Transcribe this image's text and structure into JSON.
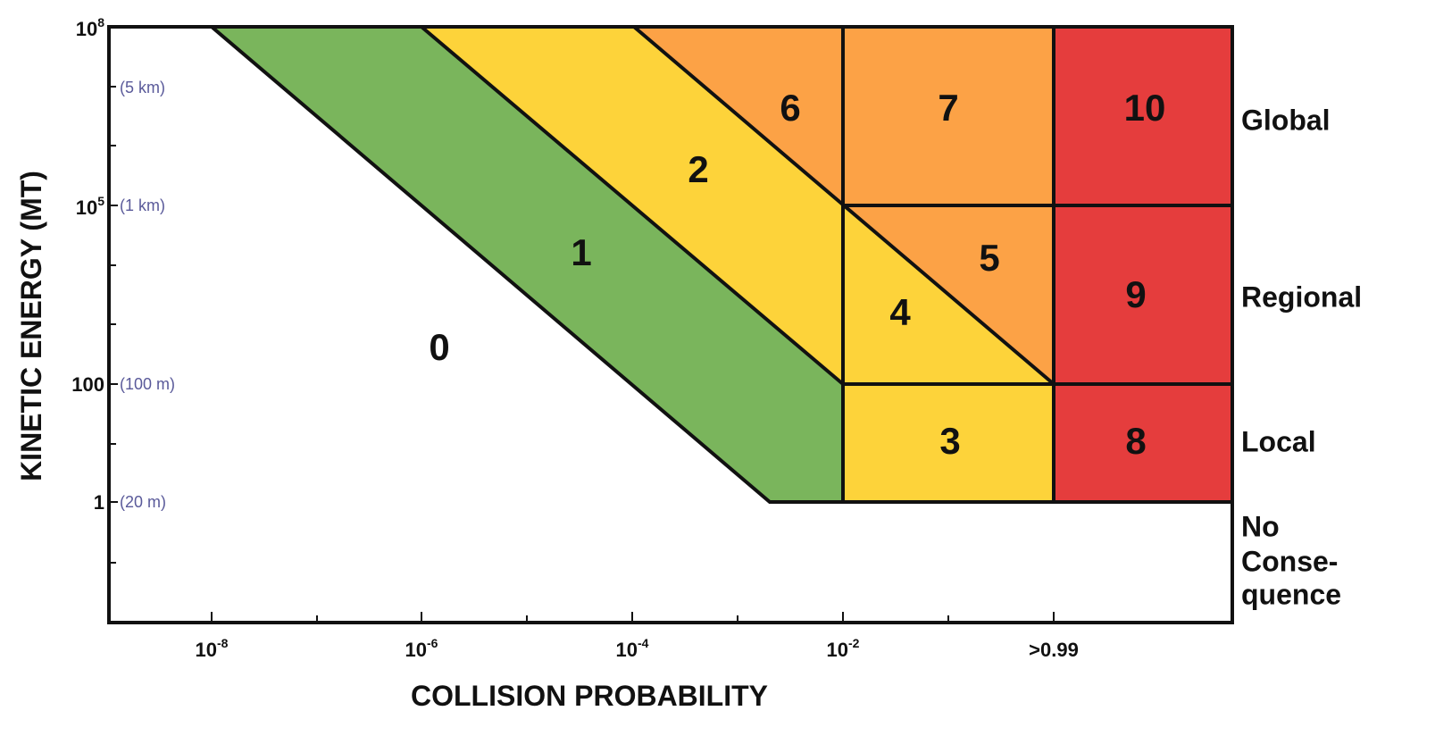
{
  "axes": {
    "y_title": "KINETIC ENERGY (MT)",
    "x_title": "COLLISION PROBABILITY"
  },
  "y_ticks": [
    {
      "text": "10",
      "sup": "8"
    },
    {
      "text": "10",
      "sup": "5"
    },
    {
      "text": "100"
    },
    {
      "text": "1"
    }
  ],
  "x_ticks": [
    {
      "text": "10",
      "sup": "-8"
    },
    {
      "text": "10",
      "sup": "-6"
    },
    {
      "text": "10",
      "sup": "-4"
    },
    {
      "text": "10",
      "sup": "-2"
    },
    {
      "text": ">0.99"
    }
  ],
  "sizes": [
    "(5 km)",
    "(1 km)",
    "(100 m)",
    "(20 m)"
  ],
  "regions": [
    "0",
    "1",
    "2",
    "3",
    "4",
    "5",
    "6",
    "7",
    "8",
    "9",
    "10"
  ],
  "zones": {
    "global": "Global",
    "regional": "Regional",
    "local": "Local",
    "none": [
      "No",
      "Conse-",
      "quence"
    ]
  }
}
